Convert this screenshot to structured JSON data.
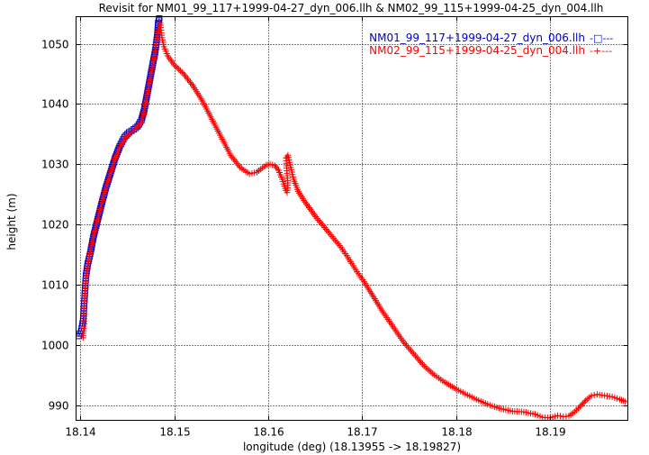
{
  "chart_data": {
    "type": "line",
    "title": "Revisit for NM01_99_117+1999-04-27_dyn_006.llh & NM02_99_115+1999-04-25_dyn_004.llh",
    "xlabel": "longitude (deg) (18.13955 -> 18.19827)",
    "ylabel": "height (m)",
    "xlim": [
      18.13955,
      18.19827
    ],
    "ylim": [
      987.5,
      1054.5
    ],
    "xticks": [
      "18.14",
      "18.15",
      "18.16",
      "18.17",
      "18.18",
      "18.19"
    ],
    "yticks": [
      "990",
      "1000",
      "1010",
      "1020",
      "1030",
      "1040",
      "1050"
    ],
    "grid": true,
    "legend_position": "top-right",
    "series": [
      {
        "name": "NM01_99_117+1999-04-27_dyn_006.llh",
        "color": "#0000cc",
        "marker": "square",
        "legend_sample": "-□---",
        "points": [
          [
            18.13985,
            1001.5
          ],
          [
            18.1401,
            1002.3
          ],
          [
            18.1403,
            1004.0
          ],
          [
            18.1404,
            1006.5
          ],
          [
            18.1405,
            1009.0
          ],
          [
            18.1406,
            1011.5
          ],
          [
            18.1408,
            1013.5
          ],
          [
            18.1411,
            1015.5
          ],
          [
            18.1414,
            1018.0
          ],
          [
            18.1418,
            1020.5
          ],
          [
            18.1422,
            1023.0
          ],
          [
            18.1427,
            1026.0
          ],
          [
            18.1432,
            1028.5
          ],
          [
            18.1437,
            1031.0
          ],
          [
            18.1442,
            1033.0
          ],
          [
            18.1447,
            1034.5
          ],
          [
            18.1452,
            1035.3
          ],
          [
            18.1457,
            1035.8
          ],
          [
            18.1461,
            1036.3
          ],
          [
            18.1465,
            1037.3
          ],
          [
            18.1468,
            1039.0
          ],
          [
            18.1471,
            1041.5
          ],
          [
            18.1474,
            1044.0
          ],
          [
            18.1477,
            1046.5
          ],
          [
            18.148,
            1049.0
          ],
          [
            18.1482,
            1051.5
          ],
          [
            18.1483,
            1053.5
          ],
          [
            18.1484,
            1054.2
          ]
        ]
      },
      {
        "name": "NM02_99_115+1999-04-25_dyn_004.llh",
        "color": "#ff0000",
        "marker": "plus",
        "legend_sample": "-+---",
        "points": [
          [
            18.1403,
            1001.2
          ],
          [
            18.1404,
            1003.5
          ],
          [
            18.1404,
            1006.0
          ],
          [
            18.1405,
            1008.5
          ],
          [
            18.1406,
            1011.0
          ],
          [
            18.1408,
            1013.0
          ],
          [
            18.141,
            1015.0
          ],
          [
            18.1413,
            1017.5
          ],
          [
            18.1417,
            1020.0
          ],
          [
            18.1421,
            1022.5
          ],
          [
            18.1426,
            1025.5
          ],
          [
            18.1431,
            1028.0
          ],
          [
            18.1436,
            1030.5
          ],
          [
            18.1441,
            1032.5
          ],
          [
            18.1446,
            1034.0
          ],
          [
            18.1452,
            1035.0
          ],
          [
            18.1458,
            1035.8
          ],
          [
            18.1463,
            1036.5
          ],
          [
            18.1467,
            1038.0
          ],
          [
            18.147,
            1040.5
          ],
          [
            18.1473,
            1043.0
          ],
          [
            18.1476,
            1045.5
          ],
          [
            18.1479,
            1048.0
          ],
          [
            18.1481,
            1050.5
          ],
          [
            18.1483,
            1052.5
          ],
          [
            18.1485,
            1053.5
          ],
          [
            18.1487,
            1051.0
          ],
          [
            18.1489,
            1049.5
          ],
          [
            18.1493,
            1048.0
          ],
          [
            18.15,
            1046.5
          ],
          [
            18.151,
            1045.0
          ],
          [
            18.152,
            1043.0
          ],
          [
            18.153,
            1040.5
          ],
          [
            18.154,
            1037.5
          ],
          [
            18.155,
            1034.5
          ],
          [
            18.156,
            1031.5
          ],
          [
            18.157,
            1029.5
          ],
          [
            18.158,
            1028.4
          ],
          [
            18.1588,
            1028.7
          ],
          [
            18.1594,
            1029.4
          ],
          [
            18.1598,
            1029.9
          ],
          [
            18.1602,
            1030.0
          ],
          [
            18.1607,
            1029.8
          ],
          [
            18.1611,
            1029.0
          ],
          [
            18.1615,
            1027.5
          ],
          [
            18.1618,
            1026.0
          ],
          [
            18.162,
            1025.3
          ],
          [
            18.1621,
            1026.5
          ],
          [
            18.162,
            1028.5
          ],
          [
            18.1619,
            1031.0
          ],
          [
            18.1621,
            1031.5
          ],
          [
            18.1624,
            1029.5
          ],
          [
            18.1627,
            1027.5
          ],
          [
            18.1632,
            1025.5
          ],
          [
            18.1638,
            1024.0
          ],
          [
            18.1645,
            1022.5
          ],
          [
            18.1652,
            1021.0
          ],
          [
            18.166,
            1019.5
          ],
          [
            18.1668,
            1018.0
          ],
          [
            18.1676,
            1016.5
          ],
          [
            18.1685,
            1014.5
          ],
          [
            18.1693,
            1012.5
          ],
          [
            18.1702,
            1010.5
          ],
          [
            18.1712,
            1008.0
          ],
          [
            18.1722,
            1005.5
          ],
          [
            18.1733,
            1003.0
          ],
          [
            18.1744,
            1000.5
          ],
          [
            18.1755,
            998.5
          ],
          [
            18.1766,
            996.5
          ],
          [
            18.1777,
            995.0
          ],
          [
            18.1788,
            993.8
          ],
          [
            18.18,
            992.7
          ],
          [
            18.1812,
            991.7
          ],
          [
            18.1824,
            990.8
          ],
          [
            18.1836,
            990.0
          ],
          [
            18.1848,
            989.4
          ],
          [
            18.186,
            989.0
          ],
          [
            18.1872,
            988.9
          ],
          [
            18.1884,
            988.5
          ],
          [
            18.1892,
            988.0
          ],
          [
            18.19,
            987.9
          ],
          [
            18.1908,
            988.3
          ],
          [
            18.1914,
            988.1
          ],
          [
            18.192,
            988.2
          ],
          [
            18.1926,
            988.9
          ],
          [
            18.1932,
            989.8
          ],
          [
            18.1938,
            990.8
          ],
          [
            18.1944,
            991.6
          ],
          [
            18.195,
            991.8
          ],
          [
            18.1958,
            991.6
          ],
          [
            18.1966,
            991.4
          ],
          [
            18.1974,
            991.0
          ],
          [
            18.198,
            990.6
          ]
        ]
      }
    ]
  }
}
